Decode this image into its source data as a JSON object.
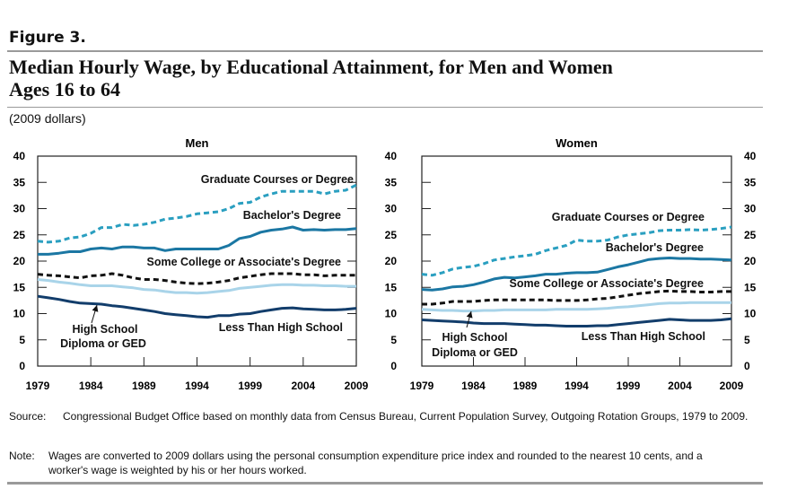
{
  "figure": {
    "label": "Figure 3.",
    "title_line1": "Median Hourly Wage, by Educational Attainment, for Men and Women",
    "title_line2": "Ages 16 to 64",
    "subtitle": "(2009 dollars)"
  },
  "colors": {
    "graduate": "#2a9fc0",
    "bachelors": "#1b77a3",
    "some_college": "#111111",
    "high_school": "#a9d4e9",
    "less_than_hs": "#123d6b"
  },
  "chart_data": [
    {
      "type": "line",
      "title": "Men",
      "x": [
        1979,
        1980,
        1981,
        1982,
        1983,
        1984,
        1985,
        1986,
        1987,
        1988,
        1989,
        1990,
        1991,
        1992,
        1993,
        1994,
        1995,
        1996,
        1997,
        1998,
        1999,
        2000,
        2001,
        2002,
        2003,
        2004,
        2005,
        2006,
        2007,
        2008,
        2009
      ],
      "xticks": [
        1979,
        1984,
        1989,
        1994,
        1999,
        2004,
        2009
      ],
      "ylim": [
        0,
        40
      ],
      "yticks": [
        0,
        5,
        10,
        15,
        20,
        25,
        30,
        35,
        40
      ],
      "series": [
        {
          "name": "Graduate Courses or Degree",
          "key": "graduate",
          "style": "dashed",
          "values": [
            23.8,
            23.6,
            23.8,
            24.4,
            24.6,
            25.3,
            26.4,
            26.4,
            27.0,
            26.8,
            27.0,
            27.4,
            28.0,
            28.2,
            28.5,
            29.0,
            29.2,
            29.4,
            30.0,
            31.0,
            31.2,
            32.2,
            32.8,
            33.3,
            33.3,
            33.3,
            33.3,
            32.8,
            33.3,
            33.5,
            34.5
          ]
        },
        {
          "name": "Bachelor's Degree",
          "key": "bachelors",
          "style": "solid",
          "values": [
            21.3,
            21.3,
            21.5,
            21.8,
            21.8,
            22.3,
            22.5,
            22.3,
            22.7,
            22.7,
            22.5,
            22.5,
            22.0,
            22.3,
            22.3,
            22.3,
            22.3,
            22.3,
            23.0,
            24.3,
            24.7,
            25.5,
            25.9,
            26.1,
            26.5,
            25.9,
            26.0,
            25.9,
            26.0,
            26.0,
            26.2
          ]
        },
        {
          "name": "Some College or Associate's Degree",
          "key": "some_college",
          "style": "dashed",
          "values": [
            17.5,
            17.3,
            17.2,
            17.0,
            16.8,
            17.2,
            17.3,
            17.6,
            17.3,
            16.8,
            16.5,
            16.5,
            16.3,
            16.0,
            15.8,
            15.7,
            15.8,
            16.0,
            16.3,
            16.8,
            17.1,
            17.4,
            17.6,
            17.6,
            17.6,
            17.4,
            17.4,
            17.2,
            17.3,
            17.3,
            17.3
          ]
        },
        {
          "name": "High School Diploma or GED",
          "key": "high_school",
          "style": "solid",
          "values": [
            16.5,
            16.3,
            16.0,
            15.8,
            15.5,
            15.3,
            15.3,
            15.3,
            15.1,
            14.9,
            14.6,
            14.5,
            14.2,
            14.0,
            14.0,
            13.9,
            14.0,
            14.2,
            14.4,
            14.8,
            15.0,
            15.2,
            15.4,
            15.5,
            15.5,
            15.4,
            15.4,
            15.3,
            15.3,
            15.2,
            15.2
          ]
        },
        {
          "name": "Less Than High School",
          "key": "less_than_hs",
          "style": "solid",
          "values": [
            13.3,
            13.0,
            12.7,
            12.3,
            12.0,
            11.9,
            11.8,
            11.5,
            11.3,
            11.0,
            10.7,
            10.4,
            10.0,
            9.8,
            9.6,
            9.4,
            9.3,
            9.6,
            9.6,
            9.9,
            10.0,
            10.4,
            10.7,
            11.0,
            11.1,
            10.9,
            10.8,
            10.7,
            10.7,
            10.8,
            11.0
          ]
        }
      ],
      "annotations": {
        "graduate": "Graduate Courses or Degree",
        "bachelors": "Bachelor's Degree",
        "some_college": "Some College or Associate's Degree",
        "high_school_line1": "High School",
        "high_school_line2": "Diploma or GED",
        "less_than_hs": "Less Than High School"
      }
    },
    {
      "type": "line",
      "title": "Women",
      "x": [
        1979,
        1980,
        1981,
        1982,
        1983,
        1984,
        1985,
        1986,
        1987,
        1988,
        1989,
        1990,
        1991,
        1992,
        1993,
        1994,
        1995,
        1996,
        1997,
        1998,
        1999,
        2000,
        2001,
        2002,
        2003,
        2004,
        2005,
        2006,
        2007,
        2008,
        2009
      ],
      "xticks": [
        1979,
        1984,
        1989,
        1994,
        1999,
        2004,
        2009
      ],
      "ylim": [
        0,
        40
      ],
      "yticks": [
        0,
        5,
        10,
        15,
        20,
        25,
        30,
        35,
        40
      ],
      "series": [
        {
          "name": "Graduate Courses or Degree",
          "key": "graduate",
          "style": "dashed",
          "values": [
            17.5,
            17.3,
            17.8,
            18.5,
            18.8,
            19.0,
            19.5,
            20.2,
            20.5,
            20.8,
            21.0,
            21.3,
            22.0,
            22.5,
            23.0,
            24.0,
            23.8,
            23.8,
            24.0,
            24.6,
            25.0,
            25.2,
            25.4,
            25.8,
            25.9,
            25.9,
            26.0,
            25.9,
            26.0,
            26.2,
            26.5
          ]
        },
        {
          "name": "Bachelor's Degree",
          "key": "bachelors",
          "style": "solid",
          "values": [
            14.6,
            14.5,
            14.7,
            15.1,
            15.2,
            15.5,
            16.0,
            16.6,
            16.9,
            16.8,
            17.0,
            17.2,
            17.5,
            17.5,
            17.7,
            17.8,
            17.8,
            17.9,
            18.4,
            18.9,
            19.3,
            19.8,
            20.3,
            20.5,
            20.6,
            20.5,
            20.5,
            20.4,
            20.4,
            20.3,
            20.2
          ]
        },
        {
          "name": "Some College or Associate's Degree",
          "key": "some_college",
          "style": "dashed",
          "values": [
            11.8,
            11.8,
            12.0,
            12.3,
            12.3,
            12.3,
            12.5,
            12.6,
            12.6,
            12.6,
            12.6,
            12.6,
            12.6,
            12.5,
            12.5,
            12.5,
            12.6,
            12.8,
            12.9,
            13.2,
            13.5,
            13.8,
            14.0,
            14.2,
            14.3,
            14.2,
            14.2,
            14.1,
            14.1,
            14.2,
            14.2
          ]
        },
        {
          "name": "High School Diploma or GED",
          "key": "high_school",
          "style": "solid",
          "values": [
            10.8,
            10.7,
            10.6,
            10.6,
            10.5,
            10.5,
            10.6,
            10.6,
            10.7,
            10.7,
            10.7,
            10.7,
            10.7,
            10.8,
            10.8,
            10.8,
            10.8,
            10.9,
            11.0,
            11.2,
            11.3,
            11.5,
            11.7,
            11.9,
            12.0,
            12.0,
            12.1,
            12.1,
            12.1,
            12.1,
            12.1
          ]
        },
        {
          "name": "Less Than High School",
          "key": "less_than_hs",
          "style": "solid",
          "values": [
            8.8,
            8.7,
            8.6,
            8.5,
            8.4,
            8.2,
            8.1,
            8.1,
            8.1,
            8.0,
            7.9,
            7.8,
            7.8,
            7.7,
            7.6,
            7.6,
            7.6,
            7.7,
            7.7,
            7.9,
            8.1,
            8.3,
            8.5,
            8.7,
            8.9,
            8.8,
            8.7,
            8.7,
            8.7,
            8.8,
            9.0
          ]
        }
      ],
      "annotations": {
        "graduate": "Graduate Courses or Degree",
        "bachelors": "Bachelor's Degree",
        "some_college": "Some College or Associate's Degree",
        "high_school_line1": "High School",
        "high_school_line2": "Diploma or GED",
        "less_than_hs": "Less Than High School"
      }
    }
  ],
  "source": {
    "label": "Source:",
    "text": "Congressional Budget Office based on monthly data from Census Bureau, Current Population Survey, Outgoing Rotation Groups, 1979 to 2009."
  },
  "note": {
    "label": "Note:",
    "text": "Wages are converted to 2009 dollars using the personal consumption expenditure price index and rounded to the nearest 10 cents, and a worker's wage is weighted by his or her hours worked."
  }
}
